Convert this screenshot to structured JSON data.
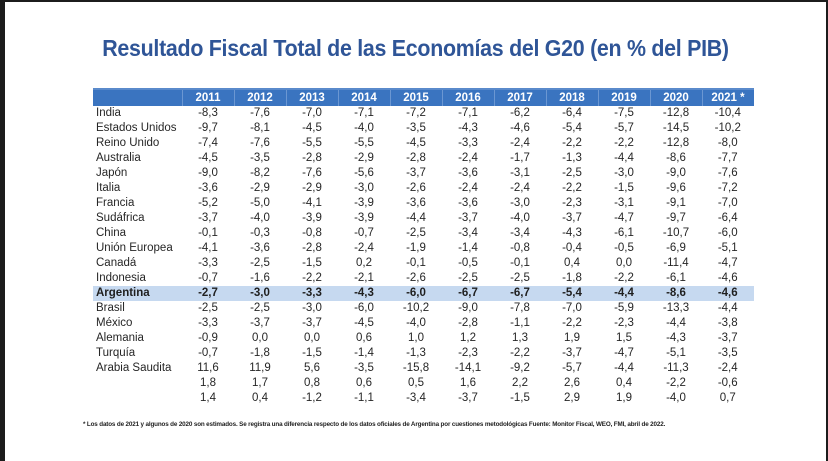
{
  "title": "Resultado Fiscal Total de las Economías del G20 (en % del PIB)",
  "colors": {
    "title": "#2f5597",
    "header_bg": "#3a74c0",
    "highlight_bg": "#c6d9f0"
  },
  "table": {
    "corner": "",
    "years": [
      "2011",
      "2012",
      "2013",
      "2014",
      "2015",
      "2016",
      "2017",
      "2018",
      "2019",
      "2020",
      "2021 *"
    ],
    "rows": [
      {
        "label": "India",
        "values": [
          "-8,3",
          "-7,6",
          "-7,0",
          "-7,1",
          "-7,2",
          "-7,1",
          "-6,2",
          "-6,4",
          "-7,5",
          "-12,8",
          "-10,4"
        ]
      },
      {
        "label": "Estados Unidos",
        "values": [
          "-9,7",
          "-8,1",
          "-4,5",
          "-4,0",
          "-3,5",
          "-4,3",
          "-4,6",
          "-5,4",
          "-5,7",
          "-14,5",
          "-10,2"
        ]
      },
      {
        "label": "Reino Unido",
        "values": [
          "-7,4",
          "-7,6",
          "-5,5",
          "-5,5",
          "-4,5",
          "-3,3",
          "-2,4",
          "-2,2",
          "-2,2",
          "-12,8",
          "-8,0"
        ]
      },
      {
        "label": "Australia",
        "values": [
          "-4,5",
          "-3,5",
          "-2,8",
          "-2,9",
          "-2,8",
          "-2,4",
          "-1,7",
          "-1,3",
          "-4,4",
          "-8,6",
          "-7,7"
        ]
      },
      {
        "label": "Japón",
        "values": [
          "-9,0",
          "-8,2",
          "-7,6",
          "-5,6",
          "-3,7",
          "-3,6",
          "-3,1",
          "-2,5",
          "-3,0",
          "-9,0",
          "-7,6"
        ]
      },
      {
        "label": "Italia",
        "values": [
          "-3,6",
          "-2,9",
          "-2,9",
          "-3,0",
          "-2,6",
          "-2,4",
          "-2,4",
          "-2,2",
          "-1,5",
          "-9,6",
          "-7,2"
        ]
      },
      {
        "label": "Francia",
        "values": [
          "-5,2",
          "-5,0",
          "-4,1",
          "-3,9",
          "-3,6",
          "-3,6",
          "-3,0",
          "-2,3",
          "-3,1",
          "-9,1",
          "-7,0"
        ]
      },
      {
        "label": "Sudáfrica",
        "values": [
          "-3,7",
          "-4,0",
          "-3,9",
          "-3,9",
          "-4,4",
          "-3,7",
          "-4,0",
          "-3,7",
          "-4,7",
          "-9,7",
          "-6,4"
        ]
      },
      {
        "label": "China",
        "values": [
          "-0,1",
          "-0,3",
          "-0,8",
          "-0,7",
          "-2,5",
          "-3,4",
          "-3,4",
          "-4,3",
          "-6,1",
          "-10,7",
          "-6,0"
        ]
      },
      {
        "label": "Unión Europea",
        "values": [
          "-4,1",
          "-3,6",
          "-2,8",
          "-2,4",
          "-1,9",
          "-1,4",
          "-0,8",
          "-0,4",
          "-0,5",
          "-6,9",
          "-5,1"
        ]
      },
      {
        "label": "Canadá",
        "values": [
          "-3,3",
          "-2,5",
          "-1,5",
          "0,2",
          "-0,1",
          "-0,5",
          "-0,1",
          "0,4",
          "0,0",
          "-11,4",
          "-4,7"
        ]
      },
      {
        "label": "Indonesia",
        "values": [
          "-0,7",
          "-1,6",
          "-2,2",
          "-2,1",
          "-2,6",
          "-2,5",
          "-2,5",
          "-1,8",
          "-2,2",
          "-6,1",
          "-4,6"
        ]
      },
      {
        "label": "Argentina",
        "highlight": true,
        "values": [
          "-2,7",
          "-3,0",
          "-3,3",
          "-4,3",
          "-6,0",
          "-6,7",
          "-6,7",
          "-5,4",
          "-4,4",
          "-8,6",
          "-4,6"
        ]
      },
      {
        "label": "Brasil",
        "values": [
          "-2,5",
          "-2,5",
          "-3,0",
          "-6,0",
          "-10,2",
          "-9,0",
          "-7,8",
          "-7,0",
          "-5,9",
          "-13,3",
          "-4,4"
        ]
      },
      {
        "label": "México",
        "values": [
          "-3,3",
          "-3,7",
          "-3,7",
          "-4,5",
          "-4,0",
          "-2,8",
          "-1,1",
          "-2,2",
          "-2,3",
          "-4,4",
          "-3,8"
        ]
      },
      {
        "label": "Alemania",
        "values": [
          "-0,9",
          "0,0",
          "0,0",
          "0,6",
          "1,0",
          "1,2",
          "1,3",
          "1,9",
          "1,5",
          "-4,3",
          "-3,7"
        ]
      },
      {
        "label": "Turquía",
        "values": [
          "-0,7",
          "-1,8",
          "-1,5",
          "-1,4",
          "-1,3",
          "-2,3",
          "-2,2",
          "-3,7",
          "-4,7",
          "-5,1",
          "-3,5"
        ]
      },
      {
        "label": "Arabia Saudita",
        "values": [
          "11,6",
          "11,9",
          "5,6",
          "-3,5",
          "-15,8",
          "-14,1",
          "-9,2",
          "-5,7",
          "-4,4",
          "-11,3",
          "-2,4"
        ]
      },
      {
        "label": "",
        "values": [
          "1,8",
          "1,7",
          "0,8",
          "0,6",
          "0,5",
          "1,6",
          "2,2",
          "2,6",
          "0,4",
          "-2,2",
          "-0,6"
        ]
      },
      {
        "label": "",
        "values": [
          "1,4",
          "0,4",
          "-1,2",
          "-1,1",
          "-3,4",
          "-3,7",
          "-1,5",
          "2,9",
          "1,9",
          "-4,0",
          "0,7"
        ]
      }
    ]
  },
  "footnote": "* Los datos de 2021 y algunos de 2020 son estimados. Se registra una diferencia respecto de los datos oficiales de Argentina por cuestiones metodológicas Fuente: Monitor Fiscal, WEO, FMI, abril de 2022."
}
